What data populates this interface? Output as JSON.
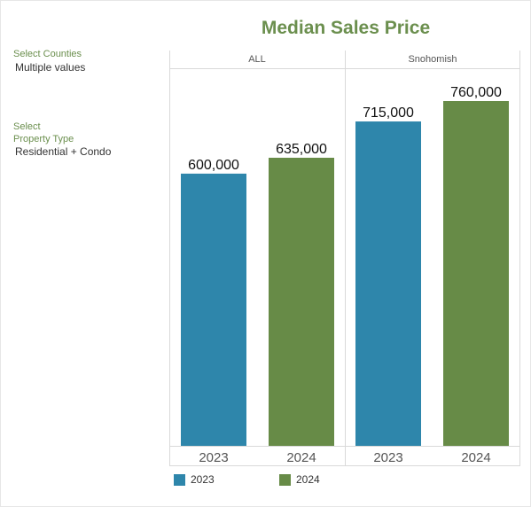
{
  "filters": {
    "counties_label": "Select Counties",
    "counties_value": "Multiple values",
    "property_label_line1": "Select",
    "property_label_line2": "Property Type",
    "property_value": "Residential + Condo"
  },
  "colors": {
    "2023": "#2e86ab",
    "2024": "#678b47",
    "title": "#6b8f4e"
  },
  "chart_data": {
    "type": "bar",
    "title": "Median Sales Price",
    "panels": [
      "ALL",
      "Snohomish"
    ],
    "categories": [
      "2023",
      "2024"
    ],
    "series": [
      {
        "panel": "ALL",
        "values": [
          600000,
          635000
        ],
        "labels": [
          "600,000",
          "635,000"
        ]
      },
      {
        "panel": "Snohomish",
        "values": [
          715000,
          760000
        ],
        "labels": [
          "715,000",
          "760,000"
        ]
      }
    ],
    "legend": [
      {
        "name": "2023",
        "color": "#2e86ab"
      },
      {
        "name": "2024",
        "color": "#678b47"
      }
    ],
    "ylim": [
      0,
      760000
    ],
    "legend_position": "bottom-left",
    "grid": false
  }
}
